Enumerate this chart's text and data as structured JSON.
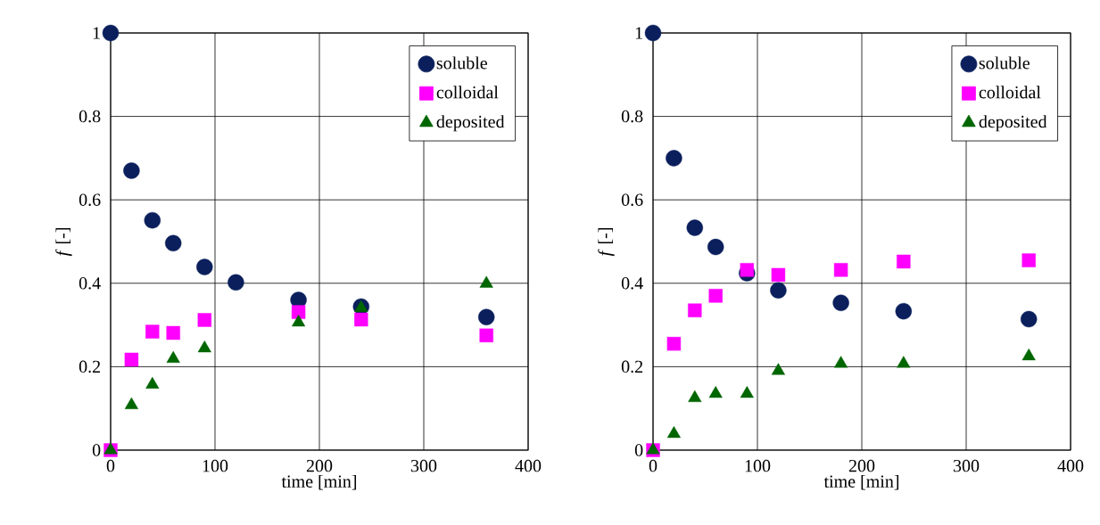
{
  "chart_data": [
    {
      "type": "scatter",
      "xlabel": "time [min]",
      "ylabel": "*f* [-]",
      "x": [
        0,
        20,
        40,
        60,
        90,
        120,
        180,
        240,
        360
      ],
      "xlim": [
        0,
        400
      ],
      "ylim": [
        0,
        1
      ],
      "xticks": [
        0,
        100,
        200,
        300,
        400
      ],
      "yticks": [
        0,
        0.2,
        0.4,
        0.6,
        0.8,
        1
      ],
      "grid": true,
      "legend": "top right",
      "series": [
        {
          "name": "soluble",
          "color": "#0a1f5c",
          "marker": "circle",
          "values": [
            1.0,
            0.67,
            0.551,
            0.496,
            0.439,
            0.402,
            0.36,
            0.344,
            0.319
          ]
        },
        {
          "name": "colloidal",
          "color": "#ff00ff",
          "marker": "square",
          "x": [
            0,
            20,
            40,
            60,
            90,
            180,
            240,
            360
          ],
          "values": [
            0,
            0.217,
            0.284,
            0.281,
            0.312,
            0.331,
            0.313,
            0.275
          ]
        },
        {
          "name": "deposited",
          "color": "#006600",
          "marker": "triangle",
          "x": [
            0,
            20,
            40,
            60,
            90,
            180,
            240,
            360
          ],
          "values": [
            0,
            0.108,
            0.157,
            0.219,
            0.244,
            0.306,
            0.341,
            0.399
          ]
        }
      ]
    },
    {
      "type": "scatter",
      "xlabel": "time [min]",
      "ylabel": "*f* [-]",
      "x": [
        0,
        20,
        40,
        60,
        90,
        120,
        180,
        240,
        360
      ],
      "xlim": [
        0,
        400
      ],
      "ylim": [
        0,
        1
      ],
      "xticks": [
        0,
        100,
        200,
        300,
        400
      ],
      "yticks": [
        0,
        0.2,
        0.4,
        0.6,
        0.8,
        1
      ],
      "grid": true,
      "legend": "top right",
      "series": [
        {
          "name": "soluble",
          "color": "#0a1f5c",
          "marker": "circle",
          "values": [
            1.0,
            0.7,
            0.533,
            0.487,
            0.424,
            0.383,
            0.353,
            0.333,
            0.314
          ]
        },
        {
          "name": "colloidal",
          "color": "#ff00ff",
          "marker": "square",
          "values": [
            0,
            0.255,
            0.335,
            0.37,
            0.432,
            0.42,
            0.432,
            0.452,
            0.455
          ]
        },
        {
          "name": "deposited",
          "color": "#006600",
          "marker": "triangle",
          "values": [
            0,
            0.039,
            0.125,
            0.135,
            0.135,
            0.19,
            0.207,
            0.207,
            0.225
          ]
        }
      ]
    }
  ]
}
